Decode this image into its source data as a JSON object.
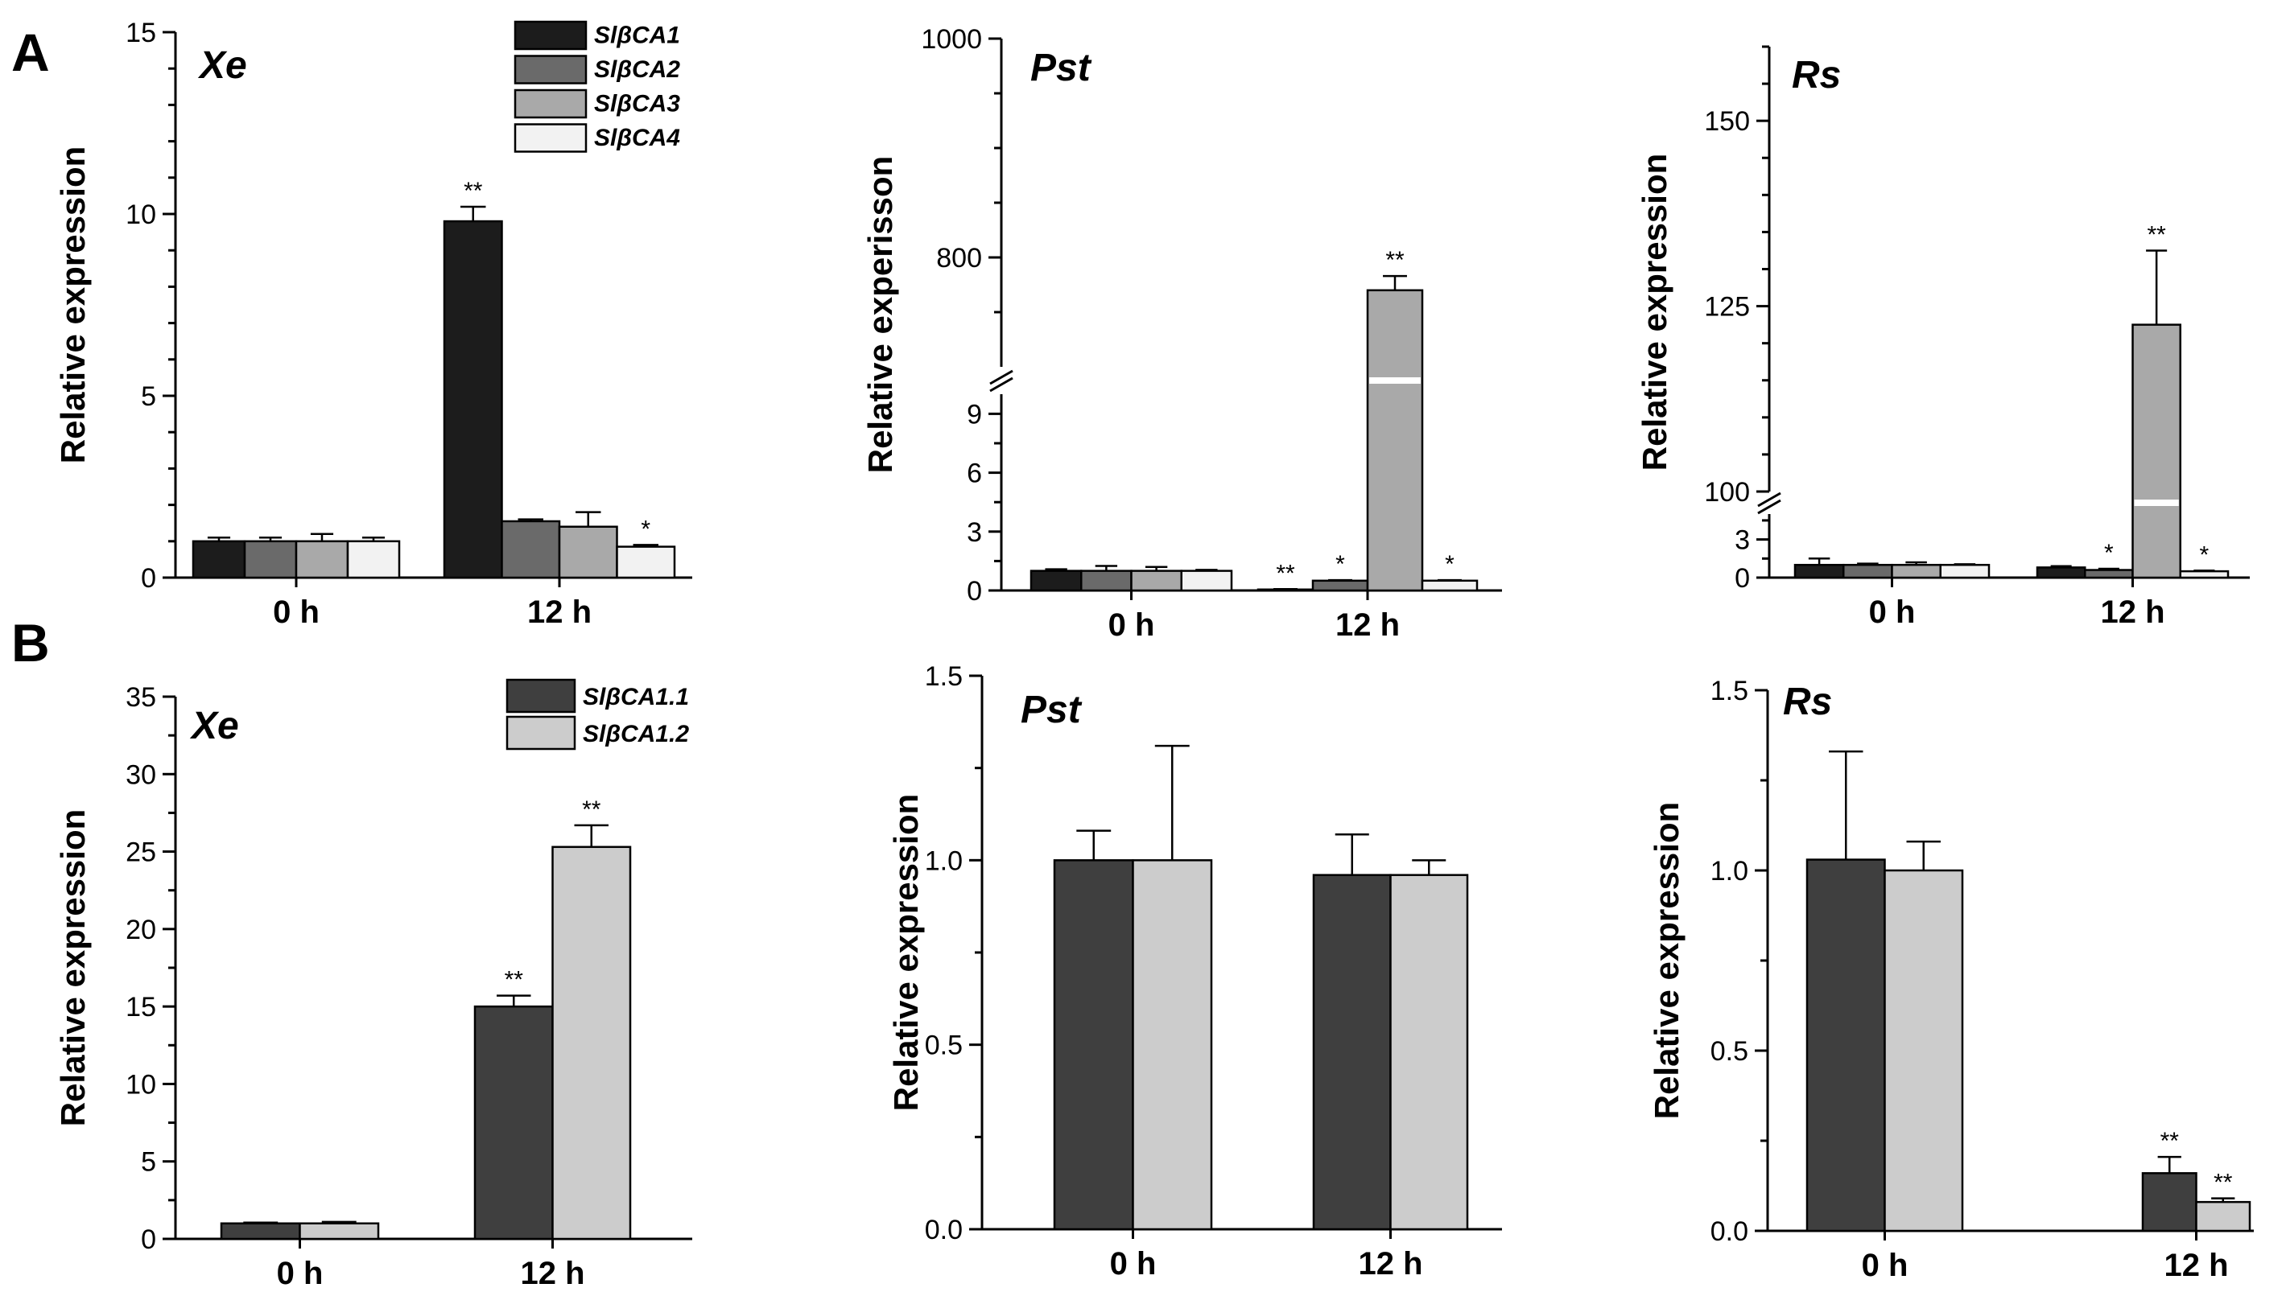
{
  "panel_labels": [
    "A",
    "B"
  ],
  "colors": {
    "SlβCA1": "#1c1c1c",
    "SlβCA2": "#6a6a6a",
    "SlβCA3": "#a9a9a9",
    "SlβCA4": "#f2f2f2",
    "SlβCA1.1": "#3f3f3f",
    "SlβCA1.2": "#cccccc"
  },
  "chart_data": [
    {
      "id": "A-Xe",
      "panel": "A",
      "type": "bar",
      "title": "Xe",
      "xlabel": "",
      "ylabel": "Relative expression",
      "categories": [
        "0 h",
        "12 h"
      ],
      "ylim": [
        0,
        15
      ],
      "yticks": [
        0,
        5,
        10,
        15
      ],
      "ytick_labels": [
        "0",
        "5",
        "10",
        "15"
      ],
      "minor_step": 1,
      "legend": {
        "position": "top-right",
        "entries": [
          "SlβCA1",
          "SlβCA2",
          "SlβCA3",
          "SlβCA4"
        ]
      },
      "series": [
        {
          "name": "SlβCA1",
          "values": [
            1.0,
            9.8
          ],
          "errors": [
            0.1,
            0.4
          ],
          "sig": [
            "",
            "**"
          ]
        },
        {
          "name": "SlβCA2",
          "values": [
            1.0,
            1.55
          ],
          "errors": [
            0.1,
            0.05
          ],
          "sig": [
            "",
            ""
          ]
        },
        {
          "name": "SlβCA3",
          "values": [
            1.0,
            1.4
          ],
          "errors": [
            0.2,
            0.4
          ],
          "sig": [
            "",
            ""
          ]
        },
        {
          "name": "SlβCA4",
          "values": [
            1.0,
            0.85
          ],
          "errors": [
            0.1,
            0.05
          ],
          "sig": [
            "",
            "*"
          ]
        }
      ]
    },
    {
      "id": "A-Pst",
      "panel": "A",
      "type": "bar",
      "title": "Pst",
      "xlabel": "",
      "ylabel": "Relative experisson",
      "categories": [
        "0 h",
        "12 h"
      ],
      "broken_axis": {
        "lower": [
          0,
          10
        ],
        "upper": [
          700,
          1000
        ]
      },
      "yticks_lower": [
        0,
        3,
        6,
        9
      ],
      "yticks_upper": [
        800,
        1000
      ],
      "minor_step_lower": 1.5,
      "minor_step_upper": 50,
      "series": [
        {
          "name": "SlβCA1",
          "values": [
            1.0,
            0.05
          ],
          "errors": [
            0.08,
            0.02
          ],
          "sig": [
            "",
            "**"
          ]
        },
        {
          "name": "SlβCA2",
          "values": [
            1.0,
            0.5
          ],
          "errors": [
            0.25,
            0.03
          ],
          "sig": [
            "",
            "*"
          ]
        },
        {
          "name": "SlβCA3",
          "values": [
            1.0,
            770
          ],
          "errors": [
            0.2,
            13
          ],
          "sig": [
            "",
            "**"
          ]
        },
        {
          "name": "SlβCA4",
          "values": [
            1.0,
            0.5
          ],
          "errors": [
            0.05,
            0.03
          ],
          "sig": [
            "",
            "*"
          ]
        }
      ]
    },
    {
      "id": "A-Rs",
      "panel": "A",
      "type": "bar",
      "title": "Rs",
      "xlabel": "",
      "ylabel": "Relative expression",
      "categories": [
        "0 h",
        "12 h"
      ],
      "broken_axis": {
        "lower": [
          0,
          5
        ],
        "upper": [
          100,
          160
        ]
      },
      "yticks_lower": [
        0,
        3
      ],
      "yticks_upper": [
        100,
        125,
        150
      ],
      "minor_step_lower": 1.5,
      "minor_step_upper": 5,
      "series": [
        {
          "name": "SlβCA1",
          "values": [
            1.0,
            0.8
          ],
          "errors": [
            0.5,
            0.1
          ],
          "sig": [
            "",
            ""
          ]
        },
        {
          "name": "SlβCA2",
          "values": [
            1.0,
            0.6
          ],
          "errors": [
            0.1,
            0.1
          ],
          "sig": [
            "",
            "*"
          ]
        },
        {
          "name": "SlβCA3",
          "values": [
            1.0,
            122.5
          ],
          "errors": [
            0.2,
            10
          ],
          "sig": [
            "",
            "**"
          ]
        },
        {
          "name": "SlβCA4",
          "values": [
            1.0,
            0.5
          ],
          "errors": [
            0.05,
            0.05
          ],
          "sig": [
            "",
            "*"
          ]
        }
      ]
    },
    {
      "id": "B-Xe",
      "panel": "B",
      "type": "bar",
      "title": "Xe",
      "xlabel": "",
      "ylabel": "Relative expression",
      "categories": [
        "0 h",
        "12 h"
      ],
      "ylim": [
        0,
        35
      ],
      "yticks": [
        0,
        5,
        10,
        15,
        20,
        25,
        30,
        35
      ],
      "ytick_labels": [
        "0",
        "5",
        "10",
        "15",
        "20",
        "25",
        "30",
        "35"
      ],
      "minor_step": 2.5,
      "legend": {
        "position": "top-right",
        "entries": [
          "SlβCA1.1",
          "SlβCA1.2"
        ]
      },
      "series": [
        {
          "name": "SlβCA1.1",
          "values": [
            1.0,
            15.0
          ],
          "errors": [
            0.05,
            0.7
          ],
          "sig": [
            "",
            "**"
          ]
        },
        {
          "name": "SlβCA1.2",
          "values": [
            1.0,
            25.3
          ],
          "errors": [
            0.1,
            1.4
          ],
          "sig": [
            "",
            "**"
          ]
        }
      ]
    },
    {
      "id": "B-Pst",
      "panel": "B",
      "type": "bar",
      "title": "Pst",
      "xlabel": "",
      "ylabel": "Relative expression",
      "categories": [
        "0 h",
        "12 h"
      ],
      "ylim": [
        0,
        1.5
      ],
      "yticks": [
        0,
        0.5,
        1.0,
        1.5
      ],
      "ytick_labels": [
        "0.0",
        "0.5",
        "1.0",
        "1.5"
      ],
      "minor_step": 0.25,
      "series": [
        {
          "name": "SlβCA1.1",
          "values": [
            1.0,
            0.96
          ],
          "errors": [
            0.08,
            0.11
          ],
          "sig": [
            "",
            ""
          ]
        },
        {
          "name": "SlβCA1.2",
          "values": [
            1.0,
            0.96
          ],
          "errors": [
            0.31,
            0.04
          ],
          "sig": [
            "",
            ""
          ]
        }
      ]
    },
    {
      "id": "B-Rs",
      "panel": "B",
      "type": "bar",
      "title": "Rs",
      "xlabel": "",
      "ylabel": "Relative expression",
      "categories": [
        "0 h",
        "12 h"
      ],
      "ylim": [
        0,
        1.5
      ],
      "yticks": [
        0,
        0.5,
        1.0,
        1.5
      ],
      "ytick_labels": [
        "0.0",
        "0.5",
        "1.0",
        "1.5"
      ],
      "minor_step": 0.25,
      "series": [
        {
          "name": "SlβCA1.1",
          "values": [
            1.03,
            0.16
          ],
          "errors": [
            0.3,
            0.045
          ],
          "sig": [
            "",
            "**"
          ]
        },
        {
          "name": "SlβCA1.2",
          "values": [
            1.0,
            0.08
          ],
          "errors": [
            0.08,
            0.01
          ],
          "sig": [
            "",
            "**"
          ]
        }
      ]
    }
  ]
}
